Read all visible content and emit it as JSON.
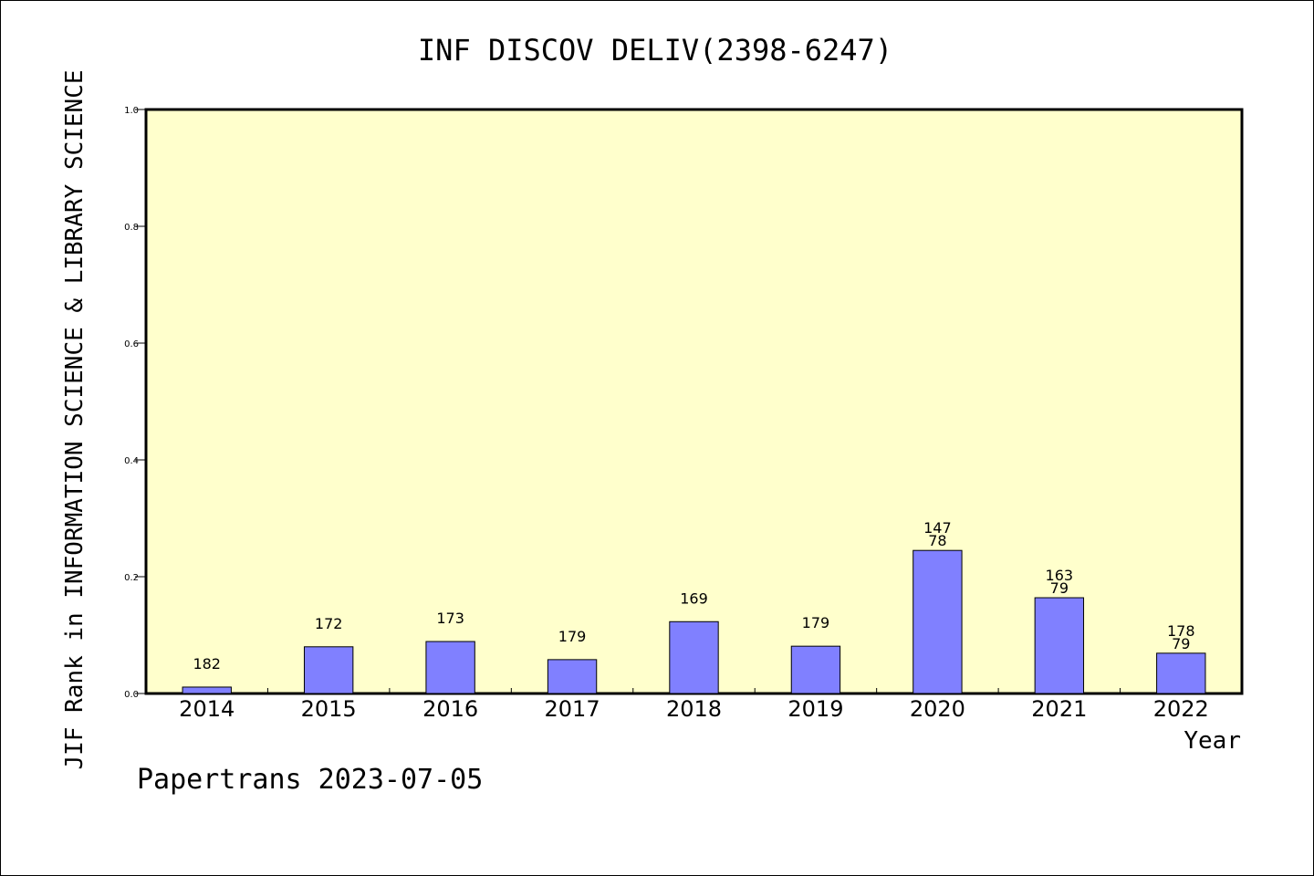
{
  "chart_data": {
    "type": "bar",
    "title": "INF DISCOV DELIV(2398-6247)",
    "xlabel": "Year",
    "ylabel": "JIF Rank in INFORMATION SCIENCE & LIBRARY SCIENCE",
    "credit": "Papertrans 2023-07-05",
    "categories": [
      "2014",
      "2015",
      "2016",
      "2017",
      "2018",
      "2019",
      "2020",
      "2021",
      "2022"
    ],
    "values": [
      0.011,
      0.08,
      0.089,
      0.058,
      0.123,
      0.081,
      0.245,
      0.164,
      0.069
    ],
    "bar_labels": [
      [
        "182"
      ],
      [
        "172"
      ],
      [
        "173"
      ],
      [
        "179"
      ],
      [
        "169"
      ],
      [
        "179"
      ],
      [
        "147",
        "78"
      ],
      [
        "163",
        "79"
      ],
      [
        "178",
        "79"
      ]
    ],
    "ylim": [
      0,
      1.0
    ],
    "yticks": [
      "0.0",
      "0.2",
      "0.4",
      "0.6",
      "0.8",
      "1.0"
    ],
    "grid": false,
    "legend": "none",
    "colors": {
      "plot_background": "#ffffcc",
      "bar_fill": "#8080ff",
      "bar_stroke": "#000000",
      "axis": "#000000"
    }
  }
}
